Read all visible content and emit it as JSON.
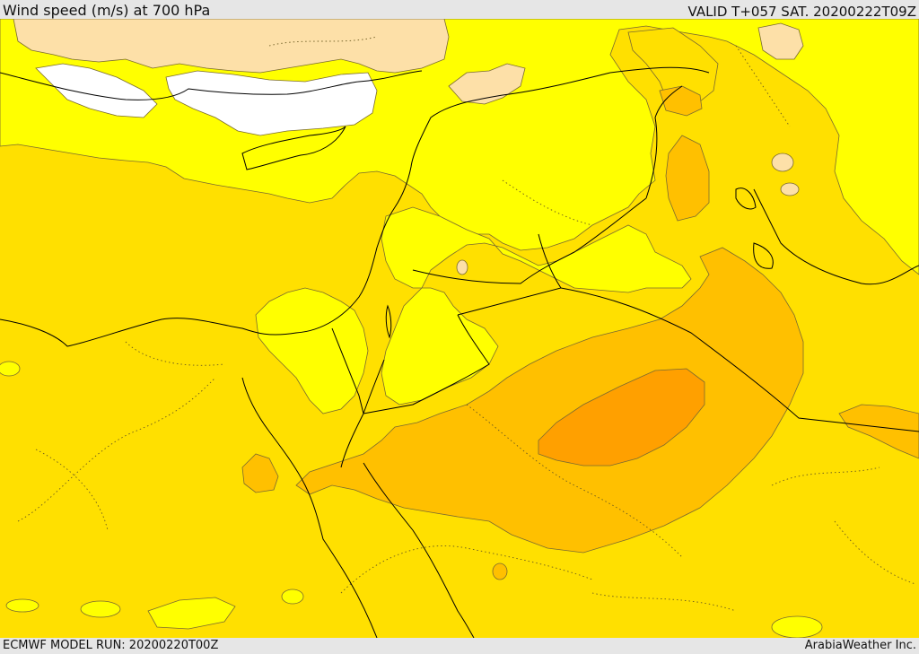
{
  "header": {
    "title": "Wind speed (m/s) at 700 hPa",
    "valid": "VALID T+057 SAT. 20200222T09Z"
  },
  "footer": {
    "model_run": "ECMWF MODEL RUN: 20200220T00Z",
    "credit": "ArabiaWeather Inc."
  },
  "colors": {
    "white": "#ffffff",
    "peach": "#fde0a8",
    "yellow": "#ffff00",
    "gold": "#ffe000",
    "amber": "#ffc000",
    "orange": "#ffa800",
    "deep_orange": "#ff9800",
    "border": "#000000",
    "contour": "#7a6a30"
  }
}
